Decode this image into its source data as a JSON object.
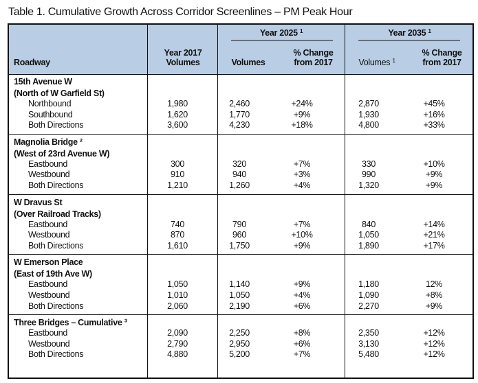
{
  "title": "Table 1. Cumulative Growth Across Corridor Screenlines – PM Peak Hour",
  "header": {
    "roadway": "Roadway",
    "y2017_line1": "Year 2017",
    "y2017_line2": "Volumes",
    "y2025": "Year 2025",
    "y2025_sup": "1",
    "y2035": "Year 2035",
    "y2035_sup": "1",
    "volumes": "Volumes",
    "volumes_sup": "1",
    "pct_line1": "% Change",
    "pct_line2": "from 2017"
  },
  "header_fill": "#b9cde4",
  "groups": [
    {
      "name": [
        "15th Avenue W",
        "(North of W Garfield St)"
      ],
      "rows": [
        [
          "Northbound",
          "1,980",
          "2,460",
          "+24%",
          "2,870",
          "+45%"
        ],
        [
          "Southbound",
          "1,620",
          "1,770",
          "+9%",
          "1,930",
          "+16%"
        ],
        [
          "Both Directions",
          "3,600",
          "4,230",
          "+18%",
          "4,800",
          "+33%"
        ]
      ]
    },
    {
      "name": [
        "Magnolia Bridge ²",
        "(West of 23rd Avenue W)"
      ],
      "rows": [
        [
          "Eastbound",
          "300",
          "320",
          "+7%",
          "330",
          "+10%"
        ],
        [
          "Westbound",
          "910",
          "940",
          "+3%",
          "990",
          "+9%"
        ],
        [
          "Both Directions",
          "1,210",
          "1,260",
          "+4%",
          "1,320",
          "+9%"
        ]
      ]
    },
    {
      "name": [
        "W Dravus St",
        "(Over Railroad Tracks)"
      ],
      "rows": [
        [
          "Eastbound",
          "740",
          "790",
          "+7%",
          "840",
          "+14%"
        ],
        [
          "Westbound",
          "870",
          "960",
          "+10%",
          "1,050",
          "+21%"
        ],
        [
          "Both Directions",
          "1,610",
          "1,750",
          "+9%",
          "1,890",
          "+17%"
        ]
      ]
    },
    {
      "name": [
        "W Emerson Place",
        "(East of 19th Ave W)"
      ],
      "rows": [
        [
          "Eastbound",
          "1,050",
          "1,140",
          "+9%",
          "1,180",
          "12%"
        ],
        [
          "Westbound",
          "1,010",
          "1,050",
          "+4%",
          "1,090",
          "+8%"
        ],
        [
          "Both Directions",
          "2,060",
          "2,190",
          "+6%",
          "2,270",
          "+9%"
        ]
      ]
    },
    {
      "name": [
        "Three Bridges – Cumulative ³"
      ],
      "rows": [
        [
          "Eastbound",
          "2,090",
          "2,250",
          "+8%",
          "2,350",
          "+12%"
        ],
        [
          "Westbound",
          "2,790",
          "2,950",
          "+6%",
          "3,130",
          "+12%"
        ],
        [
          "Both Directions",
          "4,880",
          "5,200",
          "+7%",
          "5,480",
          "+12%"
        ]
      ]
    }
  ]
}
